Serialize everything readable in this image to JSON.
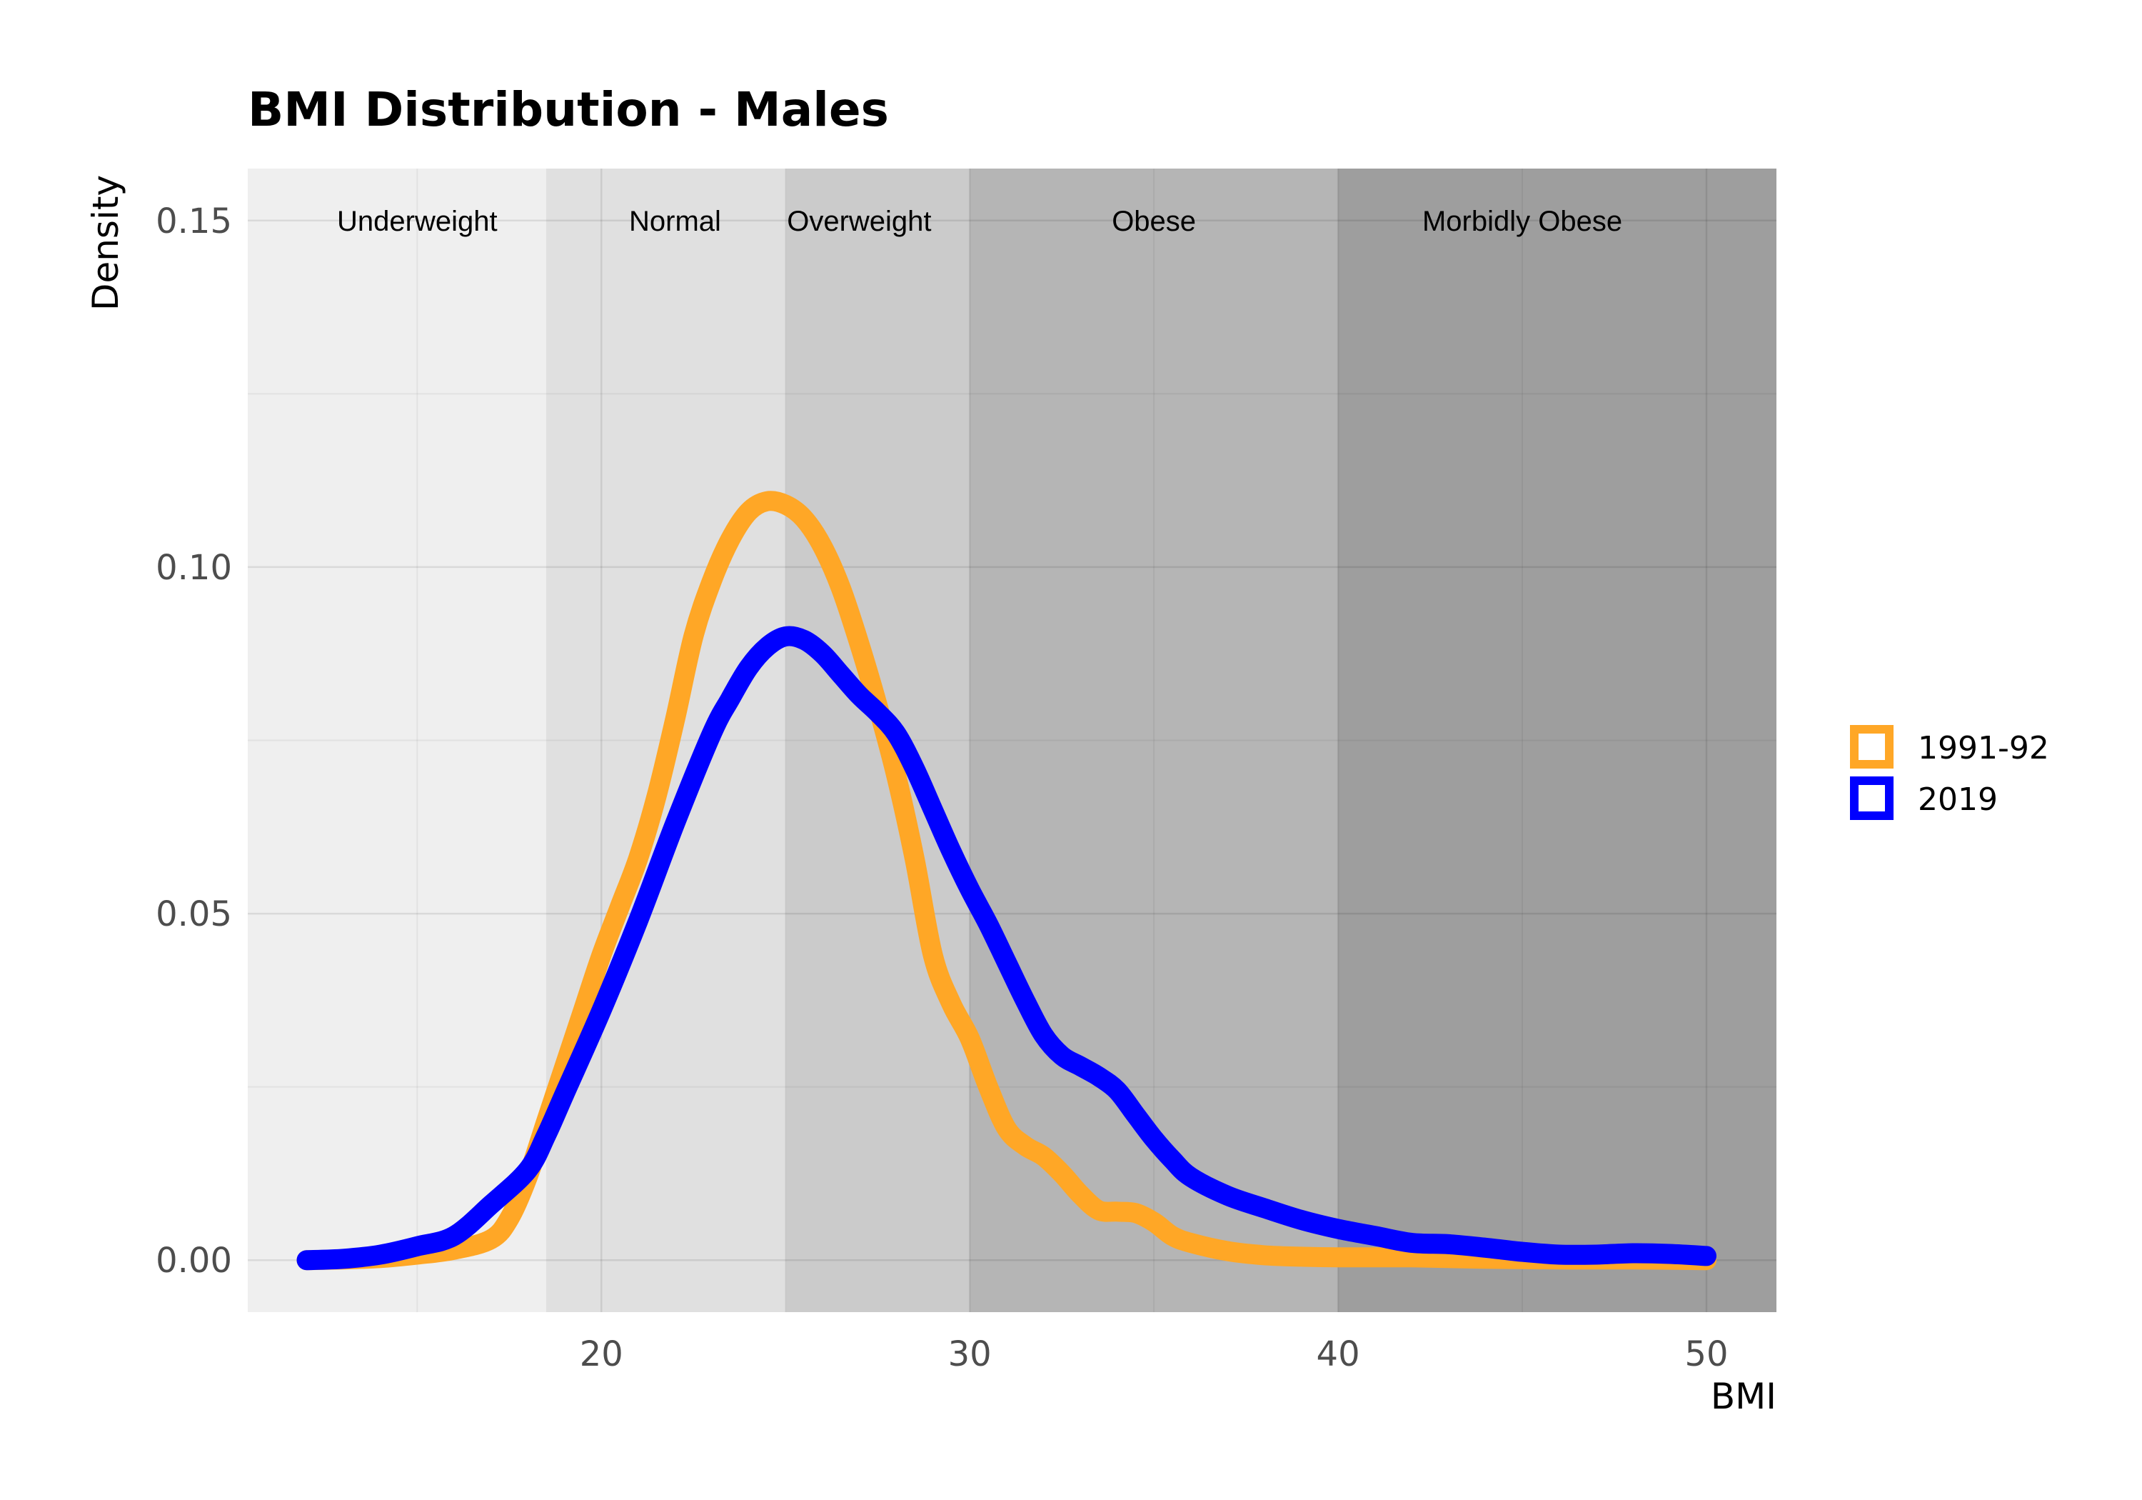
{
  "chart_data": {
    "type": "line",
    "title": "BMI Distribution - Males",
    "xlabel": "BMI",
    "ylabel": "Density",
    "xlim": [
      10.4,
      51.9
    ],
    "ylim": [
      -0.0075,
      0.1575
    ],
    "x_ticks": [
      20,
      30,
      40,
      50
    ],
    "x_tick_labels": [
      "20",
      "30",
      "40",
      "50"
    ],
    "y_ticks": [
      0.0,
      0.05,
      0.1,
      0.15
    ],
    "y_tick_labels": [
      "0.00",
      "0.05",
      "0.10",
      "0.15"
    ],
    "grid": true,
    "legend": {
      "placement": "right"
    },
    "bands": [
      {
        "label": "Underweight",
        "from": 10.4,
        "to": 18.5,
        "color": "#efefef"
      },
      {
        "label": "Normal",
        "from": 18.5,
        "to": 25,
        "color": "#e0e0e0"
      },
      {
        "label": "Overweight",
        "from": 25,
        "to": 30,
        "color": "#cbcbcb"
      },
      {
        "label": "Obese",
        "from": 30,
        "to": 40,
        "color": "#b5b5b5"
      },
      {
        "label": "Morbidly Obese",
        "from": 40,
        "to": 51.9,
        "color": "#9e9e9e"
      }
    ],
    "band_labels": [
      {
        "text": "Underweight",
        "x": 15.0
      },
      {
        "text": "Normal",
        "x": 22.0
      },
      {
        "text": "Overweight",
        "x": 27.0
      },
      {
        "text": "Obese",
        "x": 35.0
      },
      {
        "text": "Morbidly Obese",
        "x": 45.0
      }
    ],
    "series": [
      {
        "name": "1991-92",
        "color": "#FFA726",
        "points": [
          [
            12,
            0.0
          ],
          [
            13,
            0.0001
          ],
          [
            14,
            0.0003
          ],
          [
            15,
            0.0008
          ],
          [
            16,
            0.0015
          ],
          [
            17,
            0.003
          ],
          [
            17.5,
            0.006
          ],
          [
            18,
            0.012
          ],
          [
            18.5,
            0.02
          ],
          [
            19,
            0.028
          ],
          [
            19.5,
            0.036
          ],
          [
            20,
            0.044
          ],
          [
            20.5,
            0.051
          ],
          [
            21,
            0.058
          ],
          [
            21.5,
            0.067
          ],
          [
            22,
            0.078
          ],
          [
            22.5,
            0.09
          ],
          [
            23,
            0.098
          ],
          [
            23.5,
            0.104
          ],
          [
            24,
            0.108
          ],
          [
            24.5,
            0.1095
          ],
          [
            25,
            0.109
          ],
          [
            25.5,
            0.107
          ],
          [
            26,
            0.103
          ],
          [
            26.5,
            0.097
          ],
          [
            27,
            0.089
          ],
          [
            27.5,
            0.08
          ],
          [
            28,
            0.07
          ],
          [
            28.5,
            0.058
          ],
          [
            29,
            0.044
          ],
          [
            29.5,
            0.037
          ],
          [
            30,
            0.032
          ],
          [
            30.5,
            0.025
          ],
          [
            31,
            0.019
          ],
          [
            31.5,
            0.0165
          ],
          [
            32,
            0.015
          ],
          [
            32.5,
            0.0125
          ],
          [
            33,
            0.0095
          ],
          [
            33.5,
            0.0072
          ],
          [
            34,
            0.007
          ],
          [
            34.5,
            0.0068
          ],
          [
            35,
            0.0055
          ],
          [
            35.5,
            0.0035
          ],
          [
            36,
            0.0025
          ],
          [
            37,
            0.0013
          ],
          [
            38,
            0.0007
          ],
          [
            39,
            0.0005
          ],
          [
            40,
            0.0004
          ],
          [
            42,
            0.0004
          ],
          [
            44,
            0.0002
          ],
          [
            46,
            0.0001
          ],
          [
            48,
            0.0001
          ],
          [
            50,
            0.0
          ]
        ]
      },
      {
        "name": "2019",
        "color": "#0000FF",
        "points": [
          [
            12,
            0.0
          ],
          [
            13,
            0.0002
          ],
          [
            14,
            0.0008
          ],
          [
            15,
            0.002
          ],
          [
            16,
            0.0035
          ],
          [
            17,
            0.008
          ],
          [
            18,
            0.013
          ],
          [
            18.5,
            0.018
          ],
          [
            19,
            0.024
          ],
          [
            20,
            0.036
          ],
          [
            21,
            0.049
          ],
          [
            22,
            0.063
          ],
          [
            23,
            0.076
          ],
          [
            23.5,
            0.081
          ],
          [
            24,
            0.0855
          ],
          [
            24.5,
            0.0885
          ],
          [
            25,
            0.09
          ],
          [
            25.5,
            0.0895
          ],
          [
            26,
            0.0875
          ],
          [
            26.5,
            0.0845
          ],
          [
            27,
            0.0815
          ],
          [
            27.5,
            0.079
          ],
          [
            28,
            0.076
          ],
          [
            28.5,
            0.071
          ],
          [
            29,
            0.065
          ],
          [
            29.5,
            0.059
          ],
          [
            30,
            0.0535
          ],
          [
            30.5,
            0.0485
          ],
          [
            31,
            0.043
          ],
          [
            31.5,
            0.0375
          ],
          [
            32,
            0.0325
          ],
          [
            32.5,
            0.0295
          ],
          [
            33,
            0.028
          ],
          [
            33.5,
            0.0265
          ],
          [
            34,
            0.0245
          ],
          [
            34.5,
            0.021
          ],
          [
            35,
            0.0175
          ],
          [
            35.5,
            0.0145
          ],
          [
            36,
            0.012
          ],
          [
            37,
            0.0093
          ],
          [
            38,
            0.0075
          ],
          [
            39,
            0.0058
          ],
          [
            40,
            0.0045
          ],
          [
            41,
            0.0035
          ],
          [
            42,
            0.0025
          ],
          [
            43,
            0.0023
          ],
          [
            44,
            0.0018
          ],
          [
            45,
            0.0012
          ],
          [
            46,
            0.0008
          ],
          [
            47,
            0.0008
          ],
          [
            48,
            0.001
          ],
          [
            49,
            0.0009
          ],
          [
            50,
            0.0006
          ]
        ]
      }
    ]
  }
}
